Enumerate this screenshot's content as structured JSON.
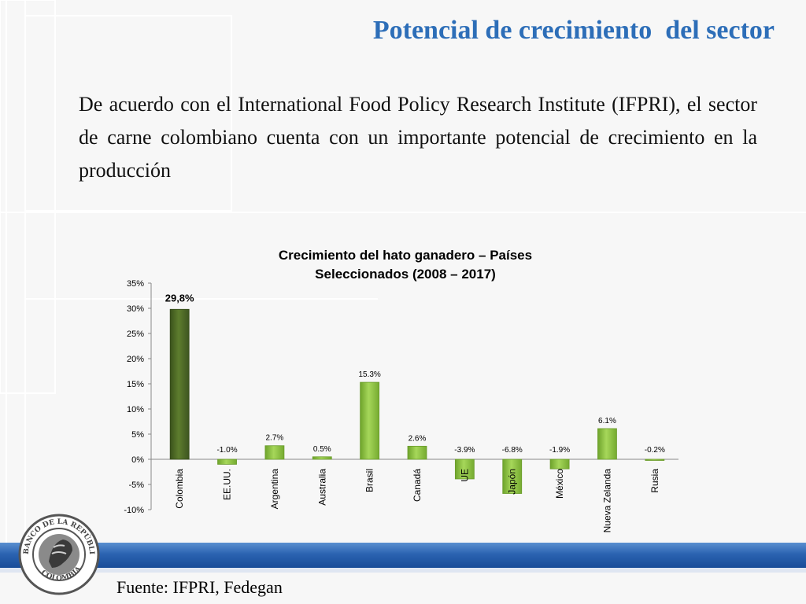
{
  "slide": {
    "title": "Potencial de crecimiento  del sector",
    "body": "De acuerdo con el International Food Policy Research Institute (IFPRI), el sector de carne colombiano cuenta con un importante potencial de crecimiento en la  producción",
    "source": "Fuente: IFPRI, Fedegan",
    "logo_text": "BANCO DE LA REPÚBLICA · COLOMBIA"
  },
  "colors": {
    "title": "#2d6eb8",
    "bar_highlight": "#4f6b26",
    "bar_normal": "#8cc63f",
    "band": "#2b63b1"
  },
  "chart_data": {
    "type": "bar",
    "title_line1": "Crecimiento del hato ganadero – Países",
    "title_line2": "Seleccionados (2008 – 2017)",
    "categories": [
      "Colombia",
      "EE.UU.",
      "Argentina",
      "Australia",
      "Brasil",
      "Canadá",
      "UE",
      "Japón",
      "México",
      "Nueva Zelanda",
      "Rusia"
    ],
    "values": [
      29.8,
      -1.0,
      2.7,
      0.5,
      15.3,
      2.6,
      -3.9,
      -6.8,
      -1.9,
      6.1,
      -0.2
    ],
    "data_labels": [
      "29,8%",
      "-1.0%",
      "2.7%",
      "0.5%",
      "15.3%",
      "2.6%",
      "-3.9%",
      "-6.8%",
      "-1.9%",
      "6.1%",
      "-0.2%"
    ],
    "highlight_index": 0,
    "yticks": [
      "35%",
      "30%",
      "25%",
      "20%",
      "15%",
      "10%",
      "5%",
      "0%",
      "-5%",
      "-10%"
    ],
    "ylim": [
      -10,
      35
    ],
    "xlabel": "",
    "ylabel": "",
    "grid": false,
    "legend": "none"
  }
}
